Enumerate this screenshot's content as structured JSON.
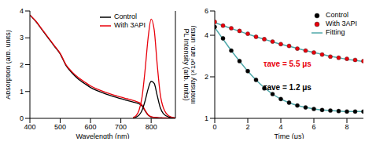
{
  "chart_data": [
    {
      "type": "line",
      "x_label": "Wavelength (nm)",
      "y_label": "Absorption (arb. units)",
      "y2_label": "PL Intensity (arb. units)",
      "x": [
        400,
        420,
        440,
        460,
        480,
        500,
        520,
        540,
        560,
        580,
        600,
        620,
        640,
        660,
        680,
        700,
        720,
        740,
        750,
        760,
        770,
        780,
        790,
        800,
        810,
        820,
        830,
        840,
        860,
        880
      ],
      "xlim": [
        400,
        880
      ],
      "xticks": [
        400,
        500,
        600,
        700,
        800
      ],
      "ylim": [
        0,
        4
      ],
      "yticks": [
        0,
        1,
        2,
        3,
        4
      ],
      "y2lim": [
        0,
        4
      ],
      "series": [
        {
          "name": "Control",
          "color": "#000000",
          "axis": "y",
          "values": [
            3.85,
            3.6,
            3.3,
            3.0,
            2.7,
            2.4,
            1.95,
            1.68,
            1.46,
            1.3,
            1.15,
            1.04,
            0.95,
            0.87,
            0.8,
            0.73,
            0.67,
            0.61,
            0.58,
            0.54,
            0.46,
            0.28,
            0.12,
            0.05,
            0.03,
            0.02,
            0.02,
            0.01,
            0.01,
            0.01
          ]
        },
        {
          "name": "With 3API",
          "color": "#e8000b",
          "axis": "y",
          "values": [
            3.85,
            3.62,
            3.32,
            3.02,
            2.72,
            2.42,
            1.98,
            1.72,
            1.52,
            1.36,
            1.21,
            1.1,
            1.01,
            0.93,
            0.86,
            0.79,
            0.73,
            0.67,
            0.63,
            0.59,
            0.5,
            0.3,
            0.13,
            0.06,
            0.04,
            0.03,
            0.02,
            0.02,
            0.01,
            0.01
          ]
        },
        {
          "name": "Control",
          "color": "#000000",
          "axis": "y2",
          "values": [
            null,
            null,
            null,
            null,
            null,
            null,
            null,
            null,
            null,
            null,
            null,
            null,
            null,
            null,
            null,
            null,
            null,
            0.02,
            0.05,
            0.12,
            0.3,
            0.65,
            1.1,
            1.38,
            1.3,
            0.85,
            0.4,
            0.18,
            0.04,
            0.01
          ]
        },
        {
          "name": "With 3API",
          "color": "#e8000b",
          "axis": "y2",
          "values": [
            null,
            null,
            null,
            null,
            null,
            null,
            null,
            null,
            null,
            null,
            null,
            null,
            null,
            null,
            null,
            null,
            null,
            0.03,
            0.1,
            0.3,
            0.8,
            1.8,
            3.0,
            3.7,
            3.3,
            2.0,
            0.9,
            0.4,
            0.08,
            0.02
          ]
        }
      ]
    },
    {
      "type": "scatter",
      "x_label": "Time (μs)",
      "y_label": "Intensity (×10³ arb. units)",
      "log": "y",
      "x": [
        0,
        0.5,
        1,
        1.5,
        2,
        2.5,
        3,
        3.5,
        4,
        4.5,
        5,
        5.5,
        6,
        6.5,
        7,
        7.5,
        8,
        8.5,
        9
      ],
      "xlim": [
        0,
        9
      ],
      "xticks": [
        0,
        2,
        4,
        6,
        8
      ],
      "ylim": [
        1,
        6
      ],
      "yticks": [
        1,
        2,
        4,
        6
      ],
      "series": [
        {
          "name": "Control",
          "color": "#000000",
          "type": "scatter",
          "marker": "circle",
          "values": [
            4.6,
            3.8,
            3.1,
            2.6,
            2.2,
            1.9,
            1.65,
            1.5,
            1.38,
            1.3,
            1.24,
            1.2,
            1.17,
            1.15,
            1.14,
            1.13,
            1.12,
            1.12,
            1.12
          ]
        },
        {
          "name": "With 3API",
          "color": "#e8000b",
          "type": "scatter",
          "marker": "circle",
          "values": [
            5.0,
            4.7,
            4.5,
            4.3,
            4.1,
            3.9,
            3.75,
            3.6,
            3.45,
            3.35,
            3.2,
            3.1,
            3.0,
            2.9,
            2.8,
            2.75,
            2.7,
            2.65,
            2.6
          ]
        },
        {
          "name": "Fitting",
          "color": "#4fa8aa",
          "type": "line",
          "values": [
            4.55,
            3.75,
            3.1,
            2.6,
            2.2,
            1.9,
            1.67,
            1.5,
            1.38,
            1.3,
            1.24,
            1.2,
            1.17,
            1.15,
            1.14,
            1.13,
            1.12,
            1.12,
            1.12
          ]
        },
        {
          "name": "Fitting",
          "color": "#4fa8aa",
          "type": "line",
          "values": [
            4.95,
            4.7,
            4.48,
            4.28,
            4.08,
            3.9,
            3.74,
            3.59,
            3.45,
            3.33,
            3.21,
            3.1,
            3.0,
            2.91,
            2.82,
            2.75,
            2.68,
            2.63,
            2.58
          ]
        }
      ],
      "annotations": [
        {
          "text": "τave = 5.5 μs",
          "color": "#e8000b"
        },
        {
          "text": "τave = 1.2 μs",
          "color": "#000000"
        }
      ]
    }
  ]
}
